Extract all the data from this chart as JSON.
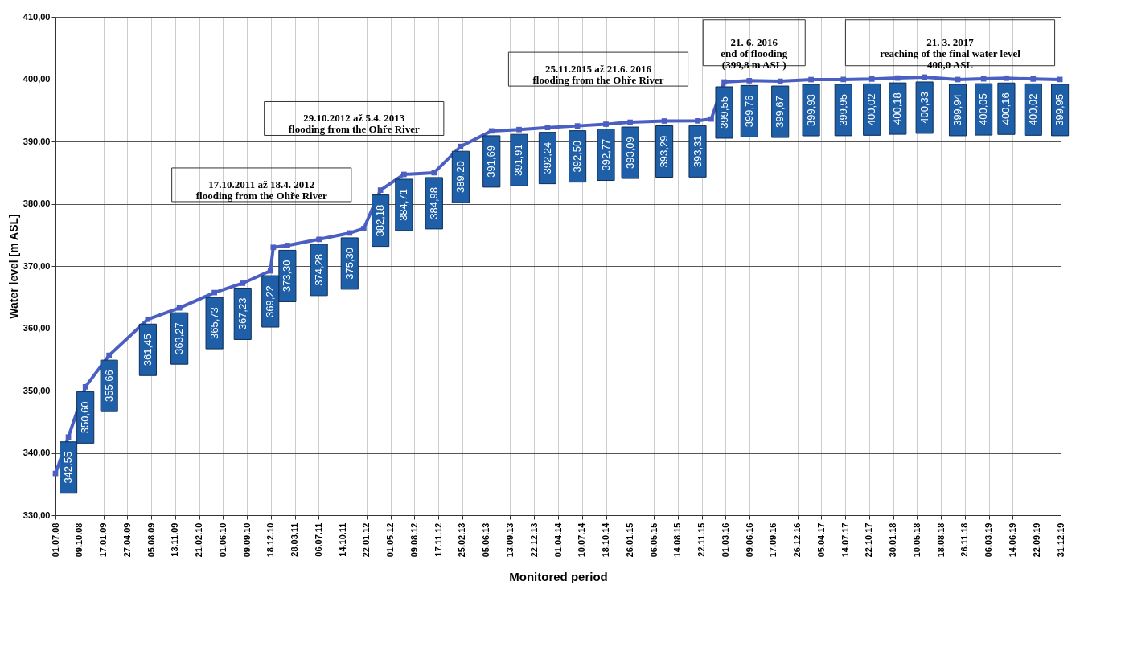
{
  "chart_data": {
    "type": "line",
    "xlabel": "Monitored period",
    "ylabel": "Water level [m ASL]",
    "x": [
      "2008-07-01",
      "2008-08-24",
      "2008-11-03",
      "2009-02-10",
      "2009-07-22",
      "2009-12-01",
      "2010-04-26",
      "2010-08-22",
      "2010-12-16",
      "2010-12-28",
      "2011-02-25",
      "2011-07-07",
      "2011-11-12",
      "2012-01-10",
      "2012-03-20",
      "2012-06-26",
      "2012-10-30",
      "2013-02-18",
      "2013-06-27",
      "2013-10-20",
      "2014-02-16",
      "2014-06-21",
      "2014-10-18",
      "2015-01-27",
      "2015-06-19",
      "2015-11-05",
      "2016-01-01",
      "2016-02-24",
      "2016-06-08",
      "2016-10-15",
      "2017-02-21",
      "2017-07-06",
      "2017-11-02",
      "2018-02-18",
      "2018-06-10",
      "2018-10-27",
      "2019-02-12",
      "2019-05-18",
      "2019-09-07",
      "2019-12-28"
    ],
    "series": [
      {
        "color": "#4a5fc1",
        "values": [
          336.7,
          342.55,
          350.6,
          355.66,
          361.45,
          363.27,
          365.73,
          367.23,
          369.22,
          373.0,
          373.3,
          374.28,
          375.3,
          376.0,
          382.18,
          384.71,
          384.98,
          389.2,
          391.69,
          391.91,
          392.24,
          392.5,
          392.77,
          393.09,
          393.29,
          393.31,
          393.6,
          399.55,
          399.76,
          399.67,
          399.93,
          399.95,
          400.02,
          400.18,
          400.33,
          399.94,
          400.05,
          400.16,
          400.02,
          399.95
        ],
        "value_labels": [
          null,
          "342,55",
          "350,60",
          "355,66",
          "361,45",
          "363,27",
          "365,73",
          "367,23",
          "369,22",
          null,
          "373,30",
          "374,28",
          "375,30",
          null,
          "382,18",
          "384,71",
          "384,98",
          "389,20",
          "391,69",
          "391,91",
          "392,24",
          "392,50",
          "392,77",
          "393,09",
          "393,29",
          "393,31",
          null,
          "399,55",
          "399,76",
          "399,67",
          "399,93",
          "399,95",
          "400,02",
          "400,18",
          "400,33",
          "399,94",
          "400,05",
          "400,16",
          "400,02",
          "399,95"
        ]
      }
    ],
    "marker": "square",
    "line_style": "solid",
    "grid": true,
    "xlim": [
      "2008-07-01",
      "2019-12-31"
    ],
    "xticks": [
      {
        "value": "2008-07-01",
        "label": "01.07.08"
      },
      {
        "value": "2008-10-09",
        "label": "09.10.08"
      },
      {
        "value": "2009-01-17",
        "label": "17.01.09"
      },
      {
        "value": "2009-04-27",
        "label": "27.04.09"
      },
      {
        "value": "2009-08-05",
        "label": "05.08.09"
      },
      {
        "value": "2009-11-13",
        "label": "13.11.09"
      },
      {
        "value": "2010-02-21",
        "label": "21.02.10"
      },
      {
        "value": "2010-06-01",
        "label": "01.06.10"
      },
      {
        "value": "2010-09-09",
        "label": "09.09.10"
      },
      {
        "value": "2010-12-18",
        "label": "18.12.10"
      },
      {
        "value": "2011-03-28",
        "label": "28.03.11"
      },
      {
        "value": "2011-07-06",
        "label": "06.07.11"
      },
      {
        "value": "2011-10-14",
        "label": "14.10.11"
      },
      {
        "value": "2012-01-22",
        "label": "22.01.12"
      },
      {
        "value": "2012-05-01",
        "label": "01.05.12"
      },
      {
        "value": "2012-08-09",
        "label": "09.08.12"
      },
      {
        "value": "2012-11-17",
        "label": "17.11.12"
      },
      {
        "value": "2013-02-25",
        "label": "25.02.13"
      },
      {
        "value": "2013-06-05",
        "label": "05.06.13"
      },
      {
        "value": "2013-09-13",
        "label": "13.09.13"
      },
      {
        "value": "2013-12-22",
        "label": "22.12.13"
      },
      {
        "value": "2014-04-01",
        "label": "01.04.14"
      },
      {
        "value": "2014-07-10",
        "label": "10.07.14"
      },
      {
        "value": "2014-10-18",
        "label": "18.10.14"
      },
      {
        "value": "2015-01-26",
        "label": "26.01.15"
      },
      {
        "value": "2015-05-06",
        "label": "06.05.15"
      },
      {
        "value": "2015-08-14",
        "label": "14.08.15"
      },
      {
        "value": "2015-11-22",
        "label": "22.11.15"
      },
      {
        "value": "2016-03-01",
        "label": "01.03.16"
      },
      {
        "value": "2016-06-09",
        "label": "09.06.16"
      },
      {
        "value": "2016-09-17",
        "label": "17.09.16"
      },
      {
        "value": "2016-12-26",
        "label": "26.12.16"
      },
      {
        "value": "2017-04-05",
        "label": "05.04.17"
      },
      {
        "value": "2017-07-14",
        "label": "14.07.17"
      },
      {
        "value": "2017-10-22",
        "label": "22.10.17"
      },
      {
        "value": "2018-01-30",
        "label": "30.01.18"
      },
      {
        "value": "2018-05-10",
        "label": "10.05.18"
      },
      {
        "value": "2018-08-18",
        "label": "18.08.18"
      },
      {
        "value": "2018-11-26",
        "label": "26.11.18"
      },
      {
        "value": "2019-03-06",
        "label": "06.03.19"
      },
      {
        "value": "2019-06-14",
        "label": "14.06.19"
      },
      {
        "value": "2019-09-22",
        "label": "22.09.19"
      },
      {
        "value": "2019-12-31",
        "label": "31.12.19"
      }
    ],
    "ylim": [
      330,
      410
    ],
    "yticks": [
      {
        "value": 330,
        "label": "330,00"
      },
      {
        "value": 340,
        "label": "340,00"
      },
      {
        "value": 350,
        "label": "350,00"
      },
      {
        "value": 360,
        "label": "360,00"
      },
      {
        "value": 370,
        "label": "370,00"
      },
      {
        "value": 380,
        "label": "380,00"
      },
      {
        "value": 390,
        "label": "390,00"
      },
      {
        "value": 400,
        "label": "400,00"
      },
      {
        "value": 410,
        "label": "410,00"
      }
    ],
    "annotations": [
      "17.10.2011 až 18.4. 2012\nflooding from the Ohře River",
      "29.10.2012 až 5.4. 2013\nflooding from the Ohře River",
      "25.11.2015 až 21.6. 2016\nflooding from the Ohře River",
      "21. 6. 2016\nend of flooding\n(399,8 m ASL)",
      "21. 3. 2017\nreaching of the final water level\n400,0 ASL"
    ]
  }
}
